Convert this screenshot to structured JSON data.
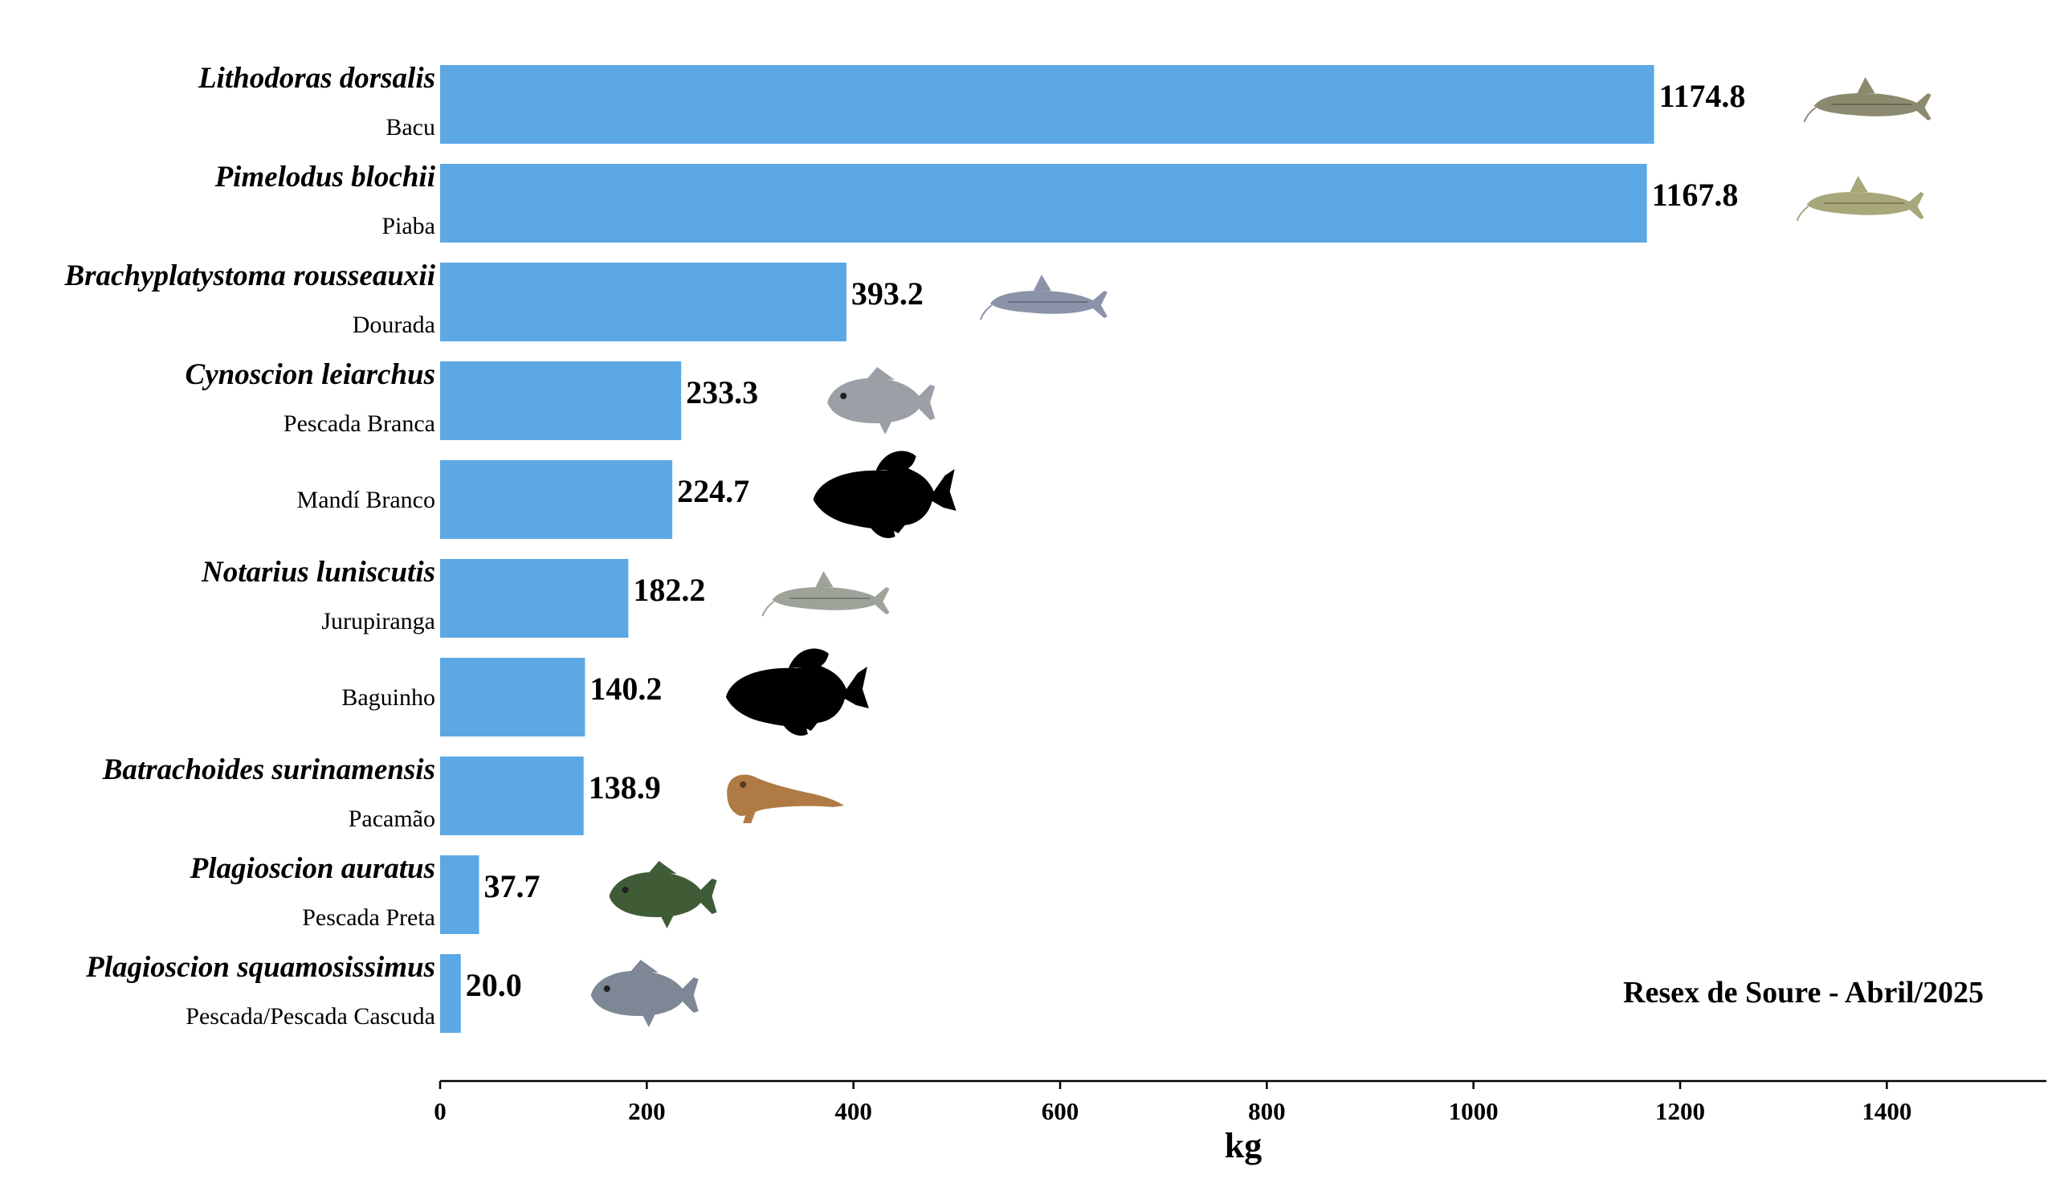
{
  "chart_data": {
    "type": "bar",
    "orientation": "horizontal",
    "title": "",
    "xlabel": "kg",
    "ylabel": "",
    "xlim": [
      0,
      1530
    ],
    "xticks": [
      0,
      200,
      400,
      600,
      800,
      1000,
      1200,
      1400
    ],
    "annotation": "Resex de Soure - Abril/2025",
    "bar_color": "#5ca8e5",
    "categories": [
      {
        "scientific": "Lithodoras dorsalis",
        "common": "Bacu",
        "value": 1174.8,
        "value_label": "1174.8",
        "icon": "catfish-photo-icon",
        "icon_color": "#8c8a6e"
      },
      {
        "scientific": "Pimelodus blochii",
        "common": "Piaba",
        "value": 1167.8,
        "value_label": "1167.8",
        "icon": "catfish-photo-icon",
        "icon_color": "#a8a77a"
      },
      {
        "scientific": "Brachyplatystoma rousseauxii",
        "common": "Dourada",
        "value": 393.2,
        "value_label": "393.2",
        "icon": "catfish-photo-icon",
        "icon_color": "#8a93a8"
      },
      {
        "scientific": "Cynoscion leiarchus",
        "common": "Pescada Branca",
        "value": 233.3,
        "value_label": "233.3",
        "icon": "fish-photo-icon",
        "icon_color": "#9aa0a6"
      },
      {
        "scientific": "",
        "common": "Mandí Branco",
        "value": 224.7,
        "value_label": "224.7",
        "icon": "fish-silhouette-icon",
        "icon_color": "#000000"
      },
      {
        "scientific": "Notarius luniscutis",
        "common": "Jurupiranga",
        "value": 182.2,
        "value_label": "182.2",
        "icon": "catfish-photo-icon",
        "icon_color": "#9ea39a"
      },
      {
        "scientific": "",
        "common": "Baguinho",
        "value": 140.2,
        "value_label": "140.2",
        "icon": "fish-silhouette-icon",
        "icon_color": "#000000"
      },
      {
        "scientific": "Batrachoides surinamensis",
        "common": "Pacamão",
        "value": 138.9,
        "value_label": "138.9",
        "icon": "toadfish-photo-icon",
        "icon_color": "#b07a45"
      },
      {
        "scientific": "Plagioscion auratus",
        "common": "Pescada Preta",
        "value": 37.7,
        "value_label": "37.7",
        "icon": "fish-photo-icon",
        "icon_color": "#3f5c36"
      },
      {
        "scientific": "Plagioscion squamosissimus",
        "common": "Pescada/Pescada Cascuda",
        "value": 20.0,
        "value_label": "20.0",
        "icon": "fish-photo-icon",
        "icon_color": "#7e8796"
      }
    ]
  }
}
